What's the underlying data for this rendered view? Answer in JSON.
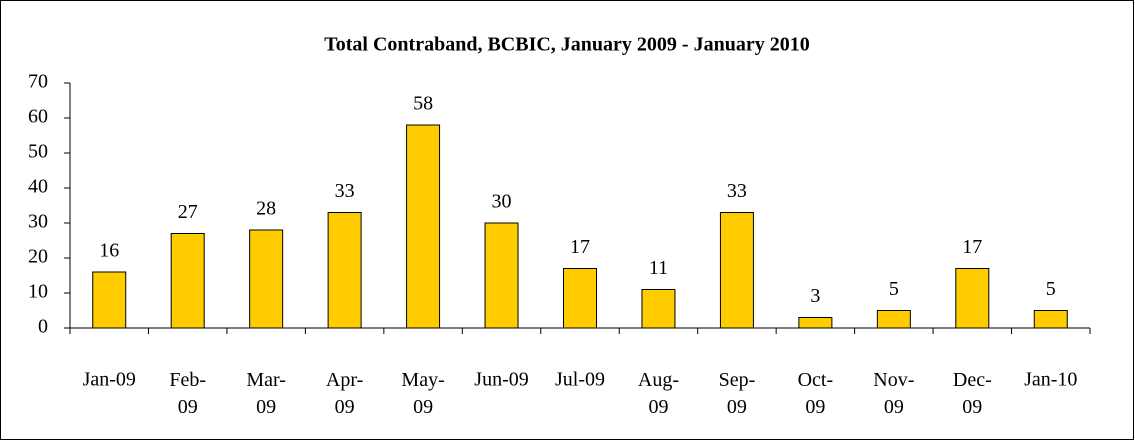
{
  "chart_data": {
    "type": "bar",
    "title": "Total Contraband, BCBIC, January 2009 - January 2010",
    "categories": [
      "Jan-09",
      "Feb-09",
      "Mar-09",
      "Apr-09",
      "May-09",
      "Jun-09",
      "Jul-09",
      "Aug-09",
      "Sep-09",
      "Oct-09",
      "Nov-09",
      "Dec-09",
      "Jan-10"
    ],
    "values": [
      16,
      27,
      28,
      33,
      58,
      30,
      17,
      11,
      33,
      3,
      5,
      17,
      5
    ],
    "color": "#ffcc00",
    "ylim": [
      0,
      70
    ],
    "yticks": [
      0,
      10,
      20,
      30,
      40,
      50,
      60,
      70
    ],
    "grid": false
  }
}
